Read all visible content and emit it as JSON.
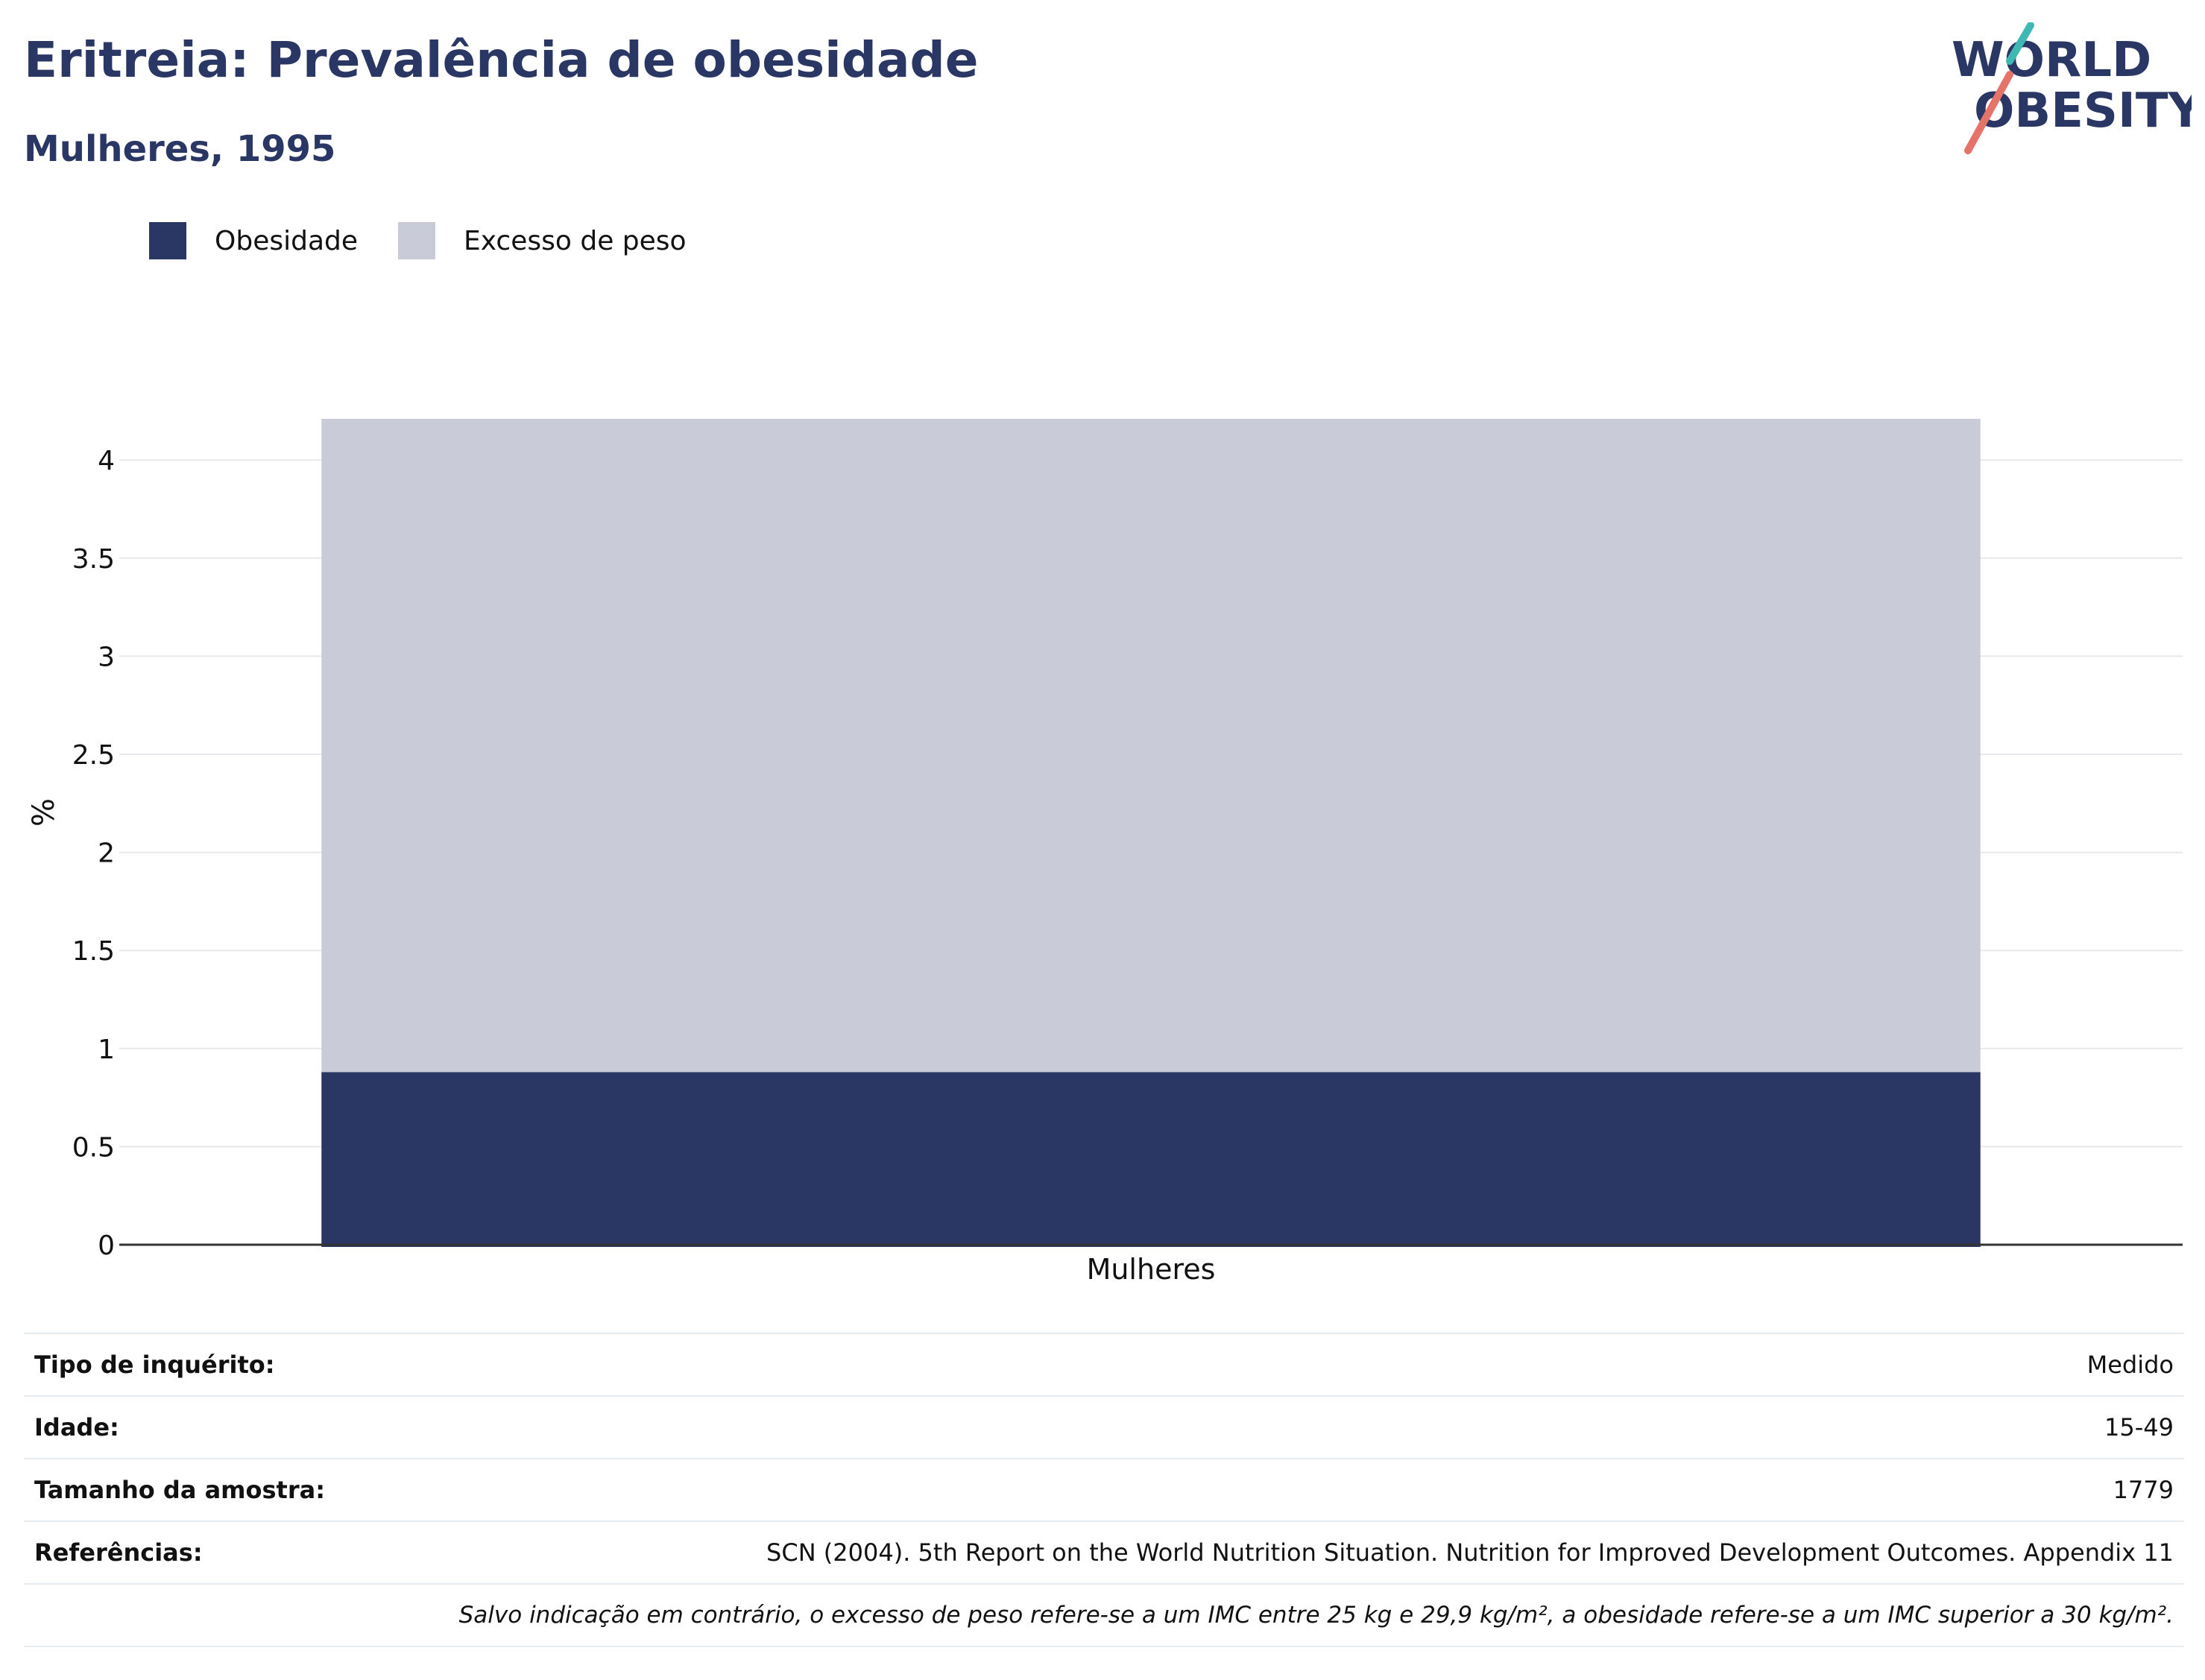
{
  "header": {
    "title": "Eritreia: Prevalência de obesidade",
    "subtitle": "Mulheres, 1995",
    "logo_line1": "WORLD",
    "logo_line2": "OBESITY"
  },
  "legend": [
    {
      "label": "Obesidade",
      "color": "#2a3663"
    },
    {
      "label": "Excesso de peso",
      "color": "#c9ccd8"
    }
  ],
  "chart_data": {
    "type": "bar",
    "stacked": true,
    "categories": [
      "Mulheres"
    ],
    "series": [
      {
        "name": "Obesidade",
        "values": [
          0.88
        ],
        "color": "#2a3663"
      },
      {
        "name": "Excesso de peso",
        "values": [
          3.33
        ],
        "color": "#c9ccd8"
      }
    ],
    "ylabel": "%",
    "ylim": [
      0,
      4.21
    ],
    "yticks": [
      0,
      0.5,
      1,
      1.5,
      2,
      2.5,
      3,
      3.5,
      4
    ],
    "ytick_labels": [
      "0",
      "0.5",
      "1",
      "1.5",
      "2",
      "2.5",
      "3",
      "3.5",
      "4"
    ],
    "grid": true,
    "legend_position": "top-left"
  },
  "info": {
    "rows": [
      {
        "label": "Tipo de inquérito:",
        "value": "Medido"
      },
      {
        "label": "Idade:",
        "value": "15-49"
      },
      {
        "label": "Tamanho da amostra:",
        "value": "1779"
      },
      {
        "label": "Referências:",
        "value": "SCN (2004). 5th Report on the World Nutrition Situation. Nutrition for Improved Development Outcomes. Appendix 11"
      }
    ],
    "note": "Salvo indicação em contrário, o excesso de peso refere-se a um IMC entre 25 kg e 29,9 kg/m², a obesidade refere-se a um IMC superior a 30 kg/m²."
  }
}
